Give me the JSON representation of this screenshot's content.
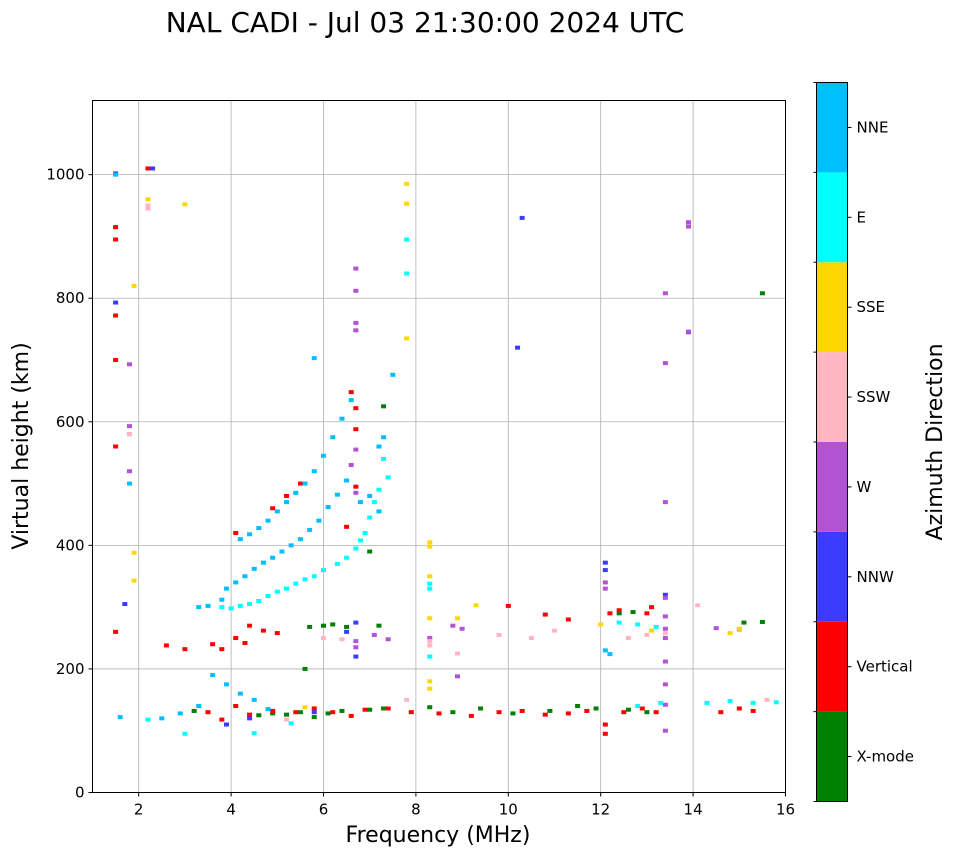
{
  "chart_data": {
    "type": "scatter",
    "title": "NAL CADI - Jul 03 21:30:00 2024 UTC",
    "xlabel": "Frequency (MHz)",
    "ylabel": "Virtual height (km)",
    "xlim": [
      1,
      16
    ],
    "ylim": [
      0,
      1120
    ],
    "xticks": [
      2,
      4,
      6,
      8,
      10,
      12,
      14,
      16
    ],
    "xtick_labels": [
      "2",
      "4",
      "6",
      "8",
      "10",
      "12",
      "14",
      "16"
    ],
    "yticks": [
      0,
      200,
      400,
      600,
      800,
      1000
    ],
    "ytick_labels": [
      "0",
      "200",
      "400",
      "600",
      "800",
      "1000"
    ],
    "grid": true,
    "colorbar": {
      "label": "Azimuth Direction",
      "categories": [
        {
          "name": "X-mode",
          "color": "#008000"
        },
        {
          "name": "Vertical",
          "color": "#ff0000"
        },
        {
          "name": "NNW",
          "color": "#3b3bff"
        },
        {
          "name": "W",
          "color": "#b452d6"
        },
        {
          "name": "SSW",
          "color": "#ffb6c1"
        },
        {
          "name": "SSE",
          "color": "#ffd700"
        },
        {
          "name": "E",
          "color": "#00ffff"
        },
        {
          "name": "NNE",
          "color": "#00bfff"
        }
      ]
    },
    "series": [
      {
        "name": "X-mode",
        "points": [
          [
            4.6,
            125
          ],
          [
            4.9,
            128
          ],
          [
            5.2,
            126
          ],
          [
            5.5,
            130
          ],
          [
            5.8,
            122
          ],
          [
            6.1,
            128
          ],
          [
            6.4,
            132
          ],
          [
            7.0,
            134
          ],
          [
            7.3,
            136
          ],
          [
            8.3,
            138
          ],
          [
            8.8,
            130
          ],
          [
            9.4,
            136
          ],
          [
            10.1,
            128
          ],
          [
            10.9,
            132
          ],
          [
            11.5,
            140
          ],
          [
            11.9,
            136
          ],
          [
            12.6,
            134
          ],
          [
            13.0,
            130
          ],
          [
            5.7,
            268
          ],
          [
            6.0,
            270
          ],
          [
            6.2,
            272
          ],
          [
            6.5,
            268
          ],
          [
            7.2,
            270
          ],
          [
            12.4,
            290
          ],
          [
            12.7,
            292
          ],
          [
            15.5,
            808
          ],
          [
            15.5,
            276
          ],
          [
            15.1,
            275
          ],
          [
            7.0,
            390
          ],
          [
            7.3,
            625
          ],
          [
            5.6,
            200
          ],
          [
            3.2,
            132
          ]
        ]
      },
      {
        "name": "Vertical",
        "points": [
          [
            1.5,
            260
          ],
          [
            1.5,
            560
          ],
          [
            1.5,
            700
          ],
          [
            1.5,
            772
          ],
          [
            1.5,
            915
          ],
          [
            1.5,
            895
          ],
          [
            2.2,
            1010
          ],
          [
            3.6,
            240
          ],
          [
            3.8,
            232
          ],
          [
            4.1,
            250
          ],
          [
            4.3,
            242
          ],
          [
            4.1,
            420
          ],
          [
            4.4,
            270
          ],
          [
            4.7,
            262
          ],
          [
            5.0,
            258
          ],
          [
            3.5,
            130
          ],
          [
            3.8,
            118
          ],
          [
            4.1,
            140
          ],
          [
            4.4,
            126
          ],
          [
            4.9,
            132
          ],
          [
            5.4,
            130
          ],
          [
            5.8,
            136
          ],
          [
            6.2,
            130
          ],
          [
            6.6,
            124
          ],
          [
            6.9,
            134
          ],
          [
            7.4,
            136
          ],
          [
            7.9,
            130
          ],
          [
            8.5,
            128
          ],
          [
            9.2,
            124
          ],
          [
            9.8,
            130
          ],
          [
            10.3,
            132
          ],
          [
            10.8,
            126
          ],
          [
            11.3,
            128
          ],
          [
            11.7,
            132
          ],
          [
            12.1,
            110
          ],
          [
            12.1,
            95
          ],
          [
            12.5,
            130
          ],
          [
            12.9,
            136
          ],
          [
            13.2,
            130
          ],
          [
            14.6,
            130
          ],
          [
            15.0,
            136
          ],
          [
            15.3,
            132
          ],
          [
            6.7,
            588
          ],
          [
            6.7,
            622
          ],
          [
            6.6,
            648
          ],
          [
            6.7,
            495
          ],
          [
            6.5,
            430
          ],
          [
            10.0,
            302
          ],
          [
            10.8,
            288
          ],
          [
            11.3,
            280
          ],
          [
            12.2,
            290
          ],
          [
            12.4,
            295
          ],
          [
            13.1,
            300
          ],
          [
            13.0,
            290
          ],
          [
            4.9,
            460
          ],
          [
            5.2,
            480
          ],
          [
            5.5,
            500
          ],
          [
            2.6,
            238
          ],
          [
            3.0,
            232
          ]
        ]
      },
      {
        "name": "NNW",
        "points": [
          [
            1.5,
            793
          ],
          [
            1.7,
            305
          ],
          [
            1.5,
            1002
          ],
          [
            2.3,
            1010
          ],
          [
            10.3,
            930
          ],
          [
            10.2,
            720
          ],
          [
            6.7,
            220
          ],
          [
            6.7,
            275
          ],
          [
            6.5,
            260
          ],
          [
            12.1,
            360
          ],
          [
            12.1,
            372
          ],
          [
            13.4,
            320
          ],
          [
            13.9,
            745
          ],
          [
            5.8,
            130
          ],
          [
            4.4,
            120
          ],
          [
            3.9,
            110
          ]
        ]
      },
      {
        "name": "W",
        "points": [
          [
            6.7,
            848
          ],
          [
            6.7,
            760
          ],
          [
            6.7,
            748
          ],
          [
            6.7,
            812
          ],
          [
            6.7,
            485
          ],
          [
            6.6,
            530
          ],
          [
            6.7,
            555
          ],
          [
            6.7,
            245
          ],
          [
            6.7,
            235
          ],
          [
            7.1,
            255
          ],
          [
            8.8,
            270
          ],
          [
            9.0,
            265
          ],
          [
            8.9,
            188
          ],
          [
            8.3,
            250
          ],
          [
            13.4,
            470
          ],
          [
            13.4,
            808
          ],
          [
            13.4,
            695
          ],
          [
            13.9,
            923
          ],
          [
            13.9,
            916
          ],
          [
            13.9,
            746
          ],
          [
            13.4,
            100
          ],
          [
            13.4,
            142
          ],
          [
            13.4,
            175
          ],
          [
            13.4,
            212
          ],
          [
            13.4,
            250
          ],
          [
            13.4,
            265
          ],
          [
            13.4,
            285
          ],
          [
            13.4,
            315
          ],
          [
            14.5,
            266
          ],
          [
            15.0,
            264
          ],
          [
            12.1,
            340
          ],
          [
            12.1,
            330
          ],
          [
            1.8,
            693
          ],
          [
            1.8,
            593
          ],
          [
            1.8,
            580
          ],
          [
            1.8,
            520
          ],
          [
            7.4,
            248
          ]
        ]
      },
      {
        "name": "SSW",
        "points": [
          [
            2.2,
            945
          ],
          [
            2.2,
            960
          ],
          [
            2.2,
            950
          ],
          [
            8.3,
            245
          ],
          [
            8.3,
            238
          ],
          [
            12.6,
            250
          ],
          [
            13.0,
            255
          ],
          [
            13.4,
            258
          ],
          [
            14.1,
            303
          ],
          [
            15.6,
            150
          ],
          [
            11.0,
            262
          ],
          [
            9.8,
            255
          ],
          [
            10.5,
            250
          ],
          [
            8.9,
            225
          ],
          [
            1.8,
            580
          ],
          [
            6.4,
            248
          ],
          [
            6.0,
            250
          ],
          [
            5.2,
            118
          ],
          [
            7.8,
            150
          ]
        ]
      },
      {
        "name": "SSE",
        "points": [
          [
            7.8,
            985
          ],
          [
            7.8,
            953
          ],
          [
            7.8,
            735
          ],
          [
            8.3,
            405
          ],
          [
            8.3,
            398
          ],
          [
            8.3,
            350
          ],
          [
            8.3,
            282
          ],
          [
            8.3,
            180
          ],
          [
            8.3,
            168
          ],
          [
            8.9,
            282
          ],
          [
            9.3,
            303
          ],
          [
            1.9,
            820
          ],
          [
            1.9,
            388
          ],
          [
            1.9,
            343
          ],
          [
            3.0,
            952
          ],
          [
            2.2,
            960
          ],
          [
            14.8,
            258
          ],
          [
            15.0,
            265
          ],
          [
            12.0,
            272
          ],
          [
            13.1,
            262
          ],
          [
            5.6,
            138
          ]
        ]
      },
      {
        "name": "E",
        "points": [
          [
            7.8,
            895
          ],
          [
            7.8,
            840
          ],
          [
            8.3,
            330
          ],
          [
            8.3,
            338
          ],
          [
            8.3,
            220
          ],
          [
            7.3,
            540
          ],
          [
            7.4,
            510
          ],
          [
            7.2,
            490
          ],
          [
            7.1,
            470
          ],
          [
            7.0,
            445
          ],
          [
            6.9,
            420
          ],
          [
            6.8,
            408
          ],
          [
            6.7,
            395
          ],
          [
            6.5,
            380
          ],
          [
            6.3,
            370
          ],
          [
            6.0,
            360
          ],
          [
            5.8,
            350
          ],
          [
            5.6,
            345
          ],
          [
            5.4,
            338
          ],
          [
            5.2,
            330
          ],
          [
            5.0,
            325
          ],
          [
            4.8,
            318
          ],
          [
            4.6,
            310
          ],
          [
            4.4,
            305
          ],
          [
            4.2,
            302
          ],
          [
            4.0,
            298
          ],
          [
            3.8,
            300
          ],
          [
            12.4,
            275
          ],
          [
            12.8,
            272
          ],
          [
            13.2,
            268
          ],
          [
            14.3,
            145
          ],
          [
            14.8,
            148
          ],
          [
            15.3,
            145
          ],
          [
            15.8,
            146
          ],
          [
            12.8,
            140
          ],
          [
            13.3,
            145
          ],
          [
            3.0,
            95
          ],
          [
            4.5,
            96
          ],
          [
            5.3,
            112
          ],
          [
            2.2,
            118
          ]
        ]
      },
      {
        "name": "NNE",
        "points": [
          [
            1.5,
            1000
          ],
          [
            7.5,
            676
          ],
          [
            5.8,
            703
          ],
          [
            7.3,
            575
          ],
          [
            7.2,
            560
          ],
          [
            6.6,
            635
          ],
          [
            6.4,
            605
          ],
          [
            6.2,
            575
          ],
          [
            6.0,
            545
          ],
          [
            5.8,
            520
          ],
          [
            5.6,
            500
          ],
          [
            5.4,
            485
          ],
          [
            5.2,
            470
          ],
          [
            5.0,
            455
          ],
          [
            4.8,
            440
          ],
          [
            4.6,
            428
          ],
          [
            4.4,
            418
          ],
          [
            4.2,
            410
          ],
          [
            6.5,
            505
          ],
          [
            6.3,
            482
          ],
          [
            6.1,
            462
          ],
          [
            5.9,
            440
          ],
          [
            5.7,
            425
          ],
          [
            5.5,
            410
          ],
          [
            5.3,
            400
          ],
          [
            5.1,
            390
          ],
          [
            4.9,
            380
          ],
          [
            4.7,
            372
          ],
          [
            4.5,
            362
          ],
          [
            4.3,
            350
          ],
          [
            4.1,
            340
          ],
          [
            3.9,
            330
          ],
          [
            3.8,
            312
          ],
          [
            3.5,
            302
          ],
          [
            3.3,
            300
          ],
          [
            6.8,
            470
          ],
          [
            7.0,
            480
          ],
          [
            7.2,
            455
          ],
          [
            1.8,
            500
          ],
          [
            12.1,
            230
          ],
          [
            12.2,
            224
          ],
          [
            3.6,
            190
          ],
          [
            3.9,
            175
          ],
          [
            4.2,
            160
          ],
          [
            4.5,
            150
          ],
          [
            4.8,
            135
          ],
          [
            3.3,
            140
          ],
          [
            2.9,
            128
          ],
          [
            2.5,
            120
          ],
          [
            1.6,
            122
          ]
        ]
      }
    ]
  }
}
